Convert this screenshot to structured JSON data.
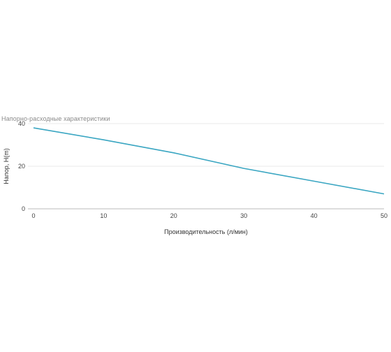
{
  "chart_data": {
    "type": "line",
    "title": "Напорно-расходные характеристики",
    "xlabel": "Производительность (л/мин)",
    "ylabel": "Напор, H(m)",
    "xlim": [
      0,
      50
    ],
    "ylim": [
      0,
      40
    ],
    "x_ticks": [
      0,
      10,
      20,
      30,
      40,
      50
    ],
    "y_ticks": [
      0,
      20,
      40
    ],
    "grid": true,
    "series": [
      {
        "color": "#3aa6c2",
        "x": [
          0,
          10,
          20,
          30,
          40,
          50
        ],
        "y": [
          38,
          32.4,
          26.3,
          19,
          13,
          7
        ]
      }
    ]
  }
}
